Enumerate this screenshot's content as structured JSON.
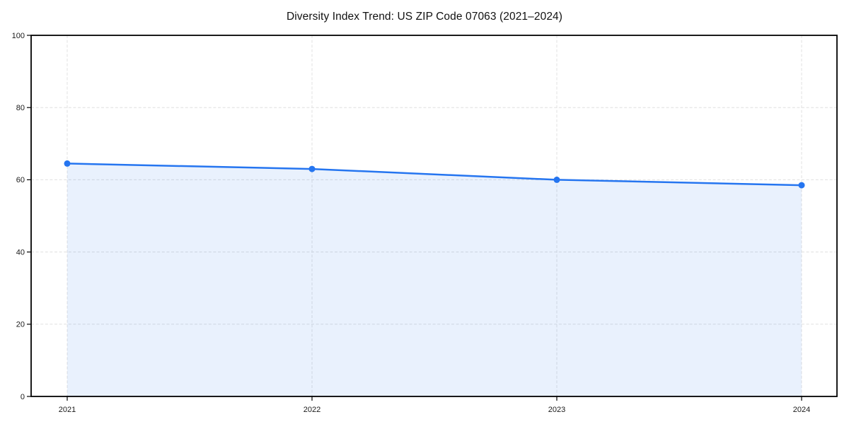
{
  "chart_data": {
    "type": "line",
    "title": "Diversity Index Trend: US ZIP Code 07063 (2021–2024)",
    "x": [
      2021,
      2022,
      2023,
      2024
    ],
    "series": [
      {
        "name": "Diversity Index",
        "values": [
          64.5,
          63,
          60,
          58.5
        ]
      }
    ],
    "xlabel": "",
    "ylabel": "",
    "ylim": [
      0,
      100
    ],
    "yticks": [
      0,
      20,
      40,
      60,
      80,
      100
    ],
    "xtick_labels": [
      "2021",
      "2022",
      "2023",
      "2024"
    ],
    "grid": true,
    "grid_style": "dashed",
    "legend": "none",
    "marker": "circle",
    "area_fill_under_line": true,
    "colors": {
      "line": "#2575f0",
      "marker": "#2575f0",
      "area_fill": "#2575f0",
      "area_fill_opacity": 0.1,
      "grid": "#e0e0e0",
      "spine": "#000000",
      "tick_text": "#1a1a1a",
      "background": "#ffffff"
    }
  }
}
